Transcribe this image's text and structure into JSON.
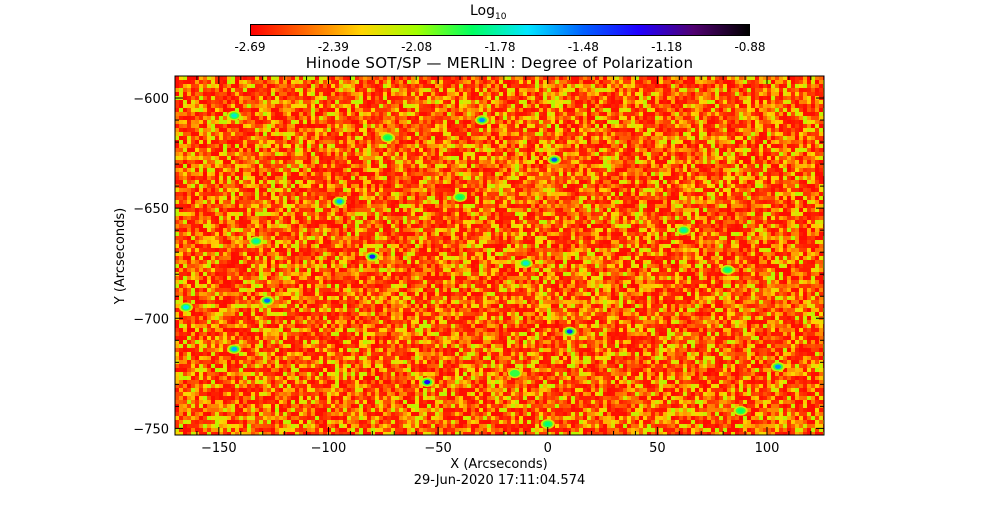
{
  "colorbar": {
    "title_main": "Log",
    "title_sub": "10",
    "ticks": [
      "-2.69",
      "-2.39",
      "-2.08",
      "-1.78",
      "-1.48",
      "-1.18",
      "-0.88"
    ],
    "min": -2.69,
    "max": -0.88,
    "colors": [
      "#ff0000",
      "#ff6a00",
      "#ffd400",
      "#a0ff00",
      "#00ff60",
      "#00e6ff",
      "#0060ff",
      "#2000ff",
      "#500070",
      "#000000"
    ]
  },
  "chart_data": {
    "type": "heatmap",
    "title": "Hinode SOT/SP — MERLIN : Degree of Polarization",
    "xlabel": "X (Arcseconds)",
    "ylabel": "Y (Arcseconds)",
    "xlim": [
      -170,
      126
    ],
    "ylim": [
      -753,
      -590
    ],
    "x_ticks": [
      -150,
      -100,
      -50,
      0,
      50,
      100
    ],
    "y_ticks": [
      -600,
      -650,
      -700,
      -750
    ],
    "background_value": -2.62,
    "features": [
      {
        "x": -143,
        "y": -608,
        "value": -1.75
      },
      {
        "x": -73,
        "y": -618,
        "value": -1.9
      },
      {
        "x": -30,
        "y": -610,
        "value": -1.55
      },
      {
        "x": 3,
        "y": -628,
        "value": -1.45
      },
      {
        "x": -95,
        "y": -647,
        "value": -1.6
      },
      {
        "x": -80,
        "y": -672,
        "value": -1.35
      },
      {
        "x": -133,
        "y": -665,
        "value": -1.8
      },
      {
        "x": -128,
        "y": -692,
        "value": -1.5
      },
      {
        "x": -165,
        "y": -695,
        "value": -1.7
      },
      {
        "x": -143,
        "y": -714,
        "value": -1.6
      },
      {
        "x": -55,
        "y": -729,
        "value": -1.3
      },
      {
        "x": -10,
        "y": -675,
        "value": -1.75
      },
      {
        "x": 10,
        "y": -706,
        "value": -1.4
      },
      {
        "x": 62,
        "y": -660,
        "value": -1.8
      },
      {
        "x": 82,
        "y": -678,
        "value": -1.85
      },
      {
        "x": 105,
        "y": -722,
        "value": -1.55
      },
      {
        "x": 88,
        "y": -742,
        "value": -1.9
      },
      {
        "x": 0,
        "y": -748,
        "value": -1.85
      },
      {
        "x": -40,
        "y": -645,
        "value": -1.9
      },
      {
        "x": -15,
        "y": -725,
        "value": -1.95
      }
    ]
  },
  "timestamp": "29-Jun-2020 17:11:04.574"
}
